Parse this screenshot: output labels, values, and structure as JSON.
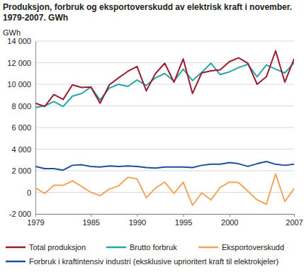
{
  "chart_data": {
    "type": "line",
    "title": "Produksjon, forbruk og eksportoverskudd av elektrisk kraft i november. 1979-2007. GWh",
    "ylabel": "GWh",
    "x": [
      1979,
      1980,
      1981,
      1982,
      1983,
      1984,
      1985,
      1986,
      1987,
      1988,
      1989,
      1990,
      1991,
      1992,
      1993,
      1994,
      1995,
      1996,
      1997,
      1998,
      1999,
      2000,
      2001,
      2002,
      2003,
      2004,
      2005,
      2006,
      2007
    ],
    "xlim": [
      1979,
      2007
    ],
    "xticks": [
      1979,
      1985,
      1990,
      1995,
      2000,
      2007
    ],
    "ylim": [
      -2000,
      14000
    ],
    "yticks": [
      {
        "value": -2000,
        "label": "-2 000"
      },
      0,
      {
        "value": 2000,
        "label": "2 000"
      },
      {
        "value": 4000,
        "label": "4 000"
      },
      {
        "value": 6000,
        "label": "6 000"
      },
      {
        "value": 8000,
        "label": "8 000"
      },
      {
        "value": 10000,
        "label": "10 000"
      },
      {
        "value": 12000,
        "label": "12 000"
      },
      {
        "value": 14000,
        "label": "14 000"
      }
    ],
    "grid": true,
    "legend": "bottom",
    "series": [
      {
        "name": "Total produksjon",
        "color": "#9b1c2e",
        "values": [
          8250,
          7950,
          9050,
          8600,
          9950,
          9700,
          9750,
          8250,
          9950,
          10600,
          11200,
          11650,
          9400,
          11000,
          11950,
          10200,
          12350,
          9150,
          11050,
          11250,
          11350,
          12100,
          12450,
          11950,
          10000,
          10700,
          13100,
          10200,
          12350
        ]
      },
      {
        "name": "Brutto forbruk",
        "color": "#2aa5a5",
        "values": [
          7850,
          8000,
          8400,
          7950,
          8900,
          9150,
          9750,
          8550,
          9650,
          10000,
          9800,
          10400,
          9900,
          10600,
          11000,
          10300,
          11400,
          10350,
          11100,
          11950,
          10900,
          11150,
          11550,
          11850,
          10700,
          11800,
          11400,
          11050,
          12000
        ]
      },
      {
        "name": "Eksportoverskudd",
        "color": "#f5a55a",
        "values": [
          400,
          -100,
          650,
          650,
          1050,
          550,
          0,
          -300,
          300,
          600,
          1400,
          1250,
          -500,
          400,
          950,
          -100,
          950,
          -1200,
          -50,
          -700,
          450,
          950,
          900,
          100,
          -700,
          -1100,
          1700,
          -850,
          350
        ]
      },
      {
        "name": "Forbruk i kraftintensiv industri (eksklusive uprioritert kraft til elektrokjeler)",
        "color": "#1f4e9c",
        "values": [
          2400,
          2200,
          2200,
          2050,
          2500,
          2550,
          2400,
          2350,
          2450,
          2400,
          2450,
          2400,
          2300,
          2250,
          2350,
          2350,
          2350,
          2300,
          2500,
          2600,
          2600,
          2750,
          2650,
          2400,
          2650,
          2850,
          2600,
          2500,
          2600
        ]
      }
    ]
  }
}
